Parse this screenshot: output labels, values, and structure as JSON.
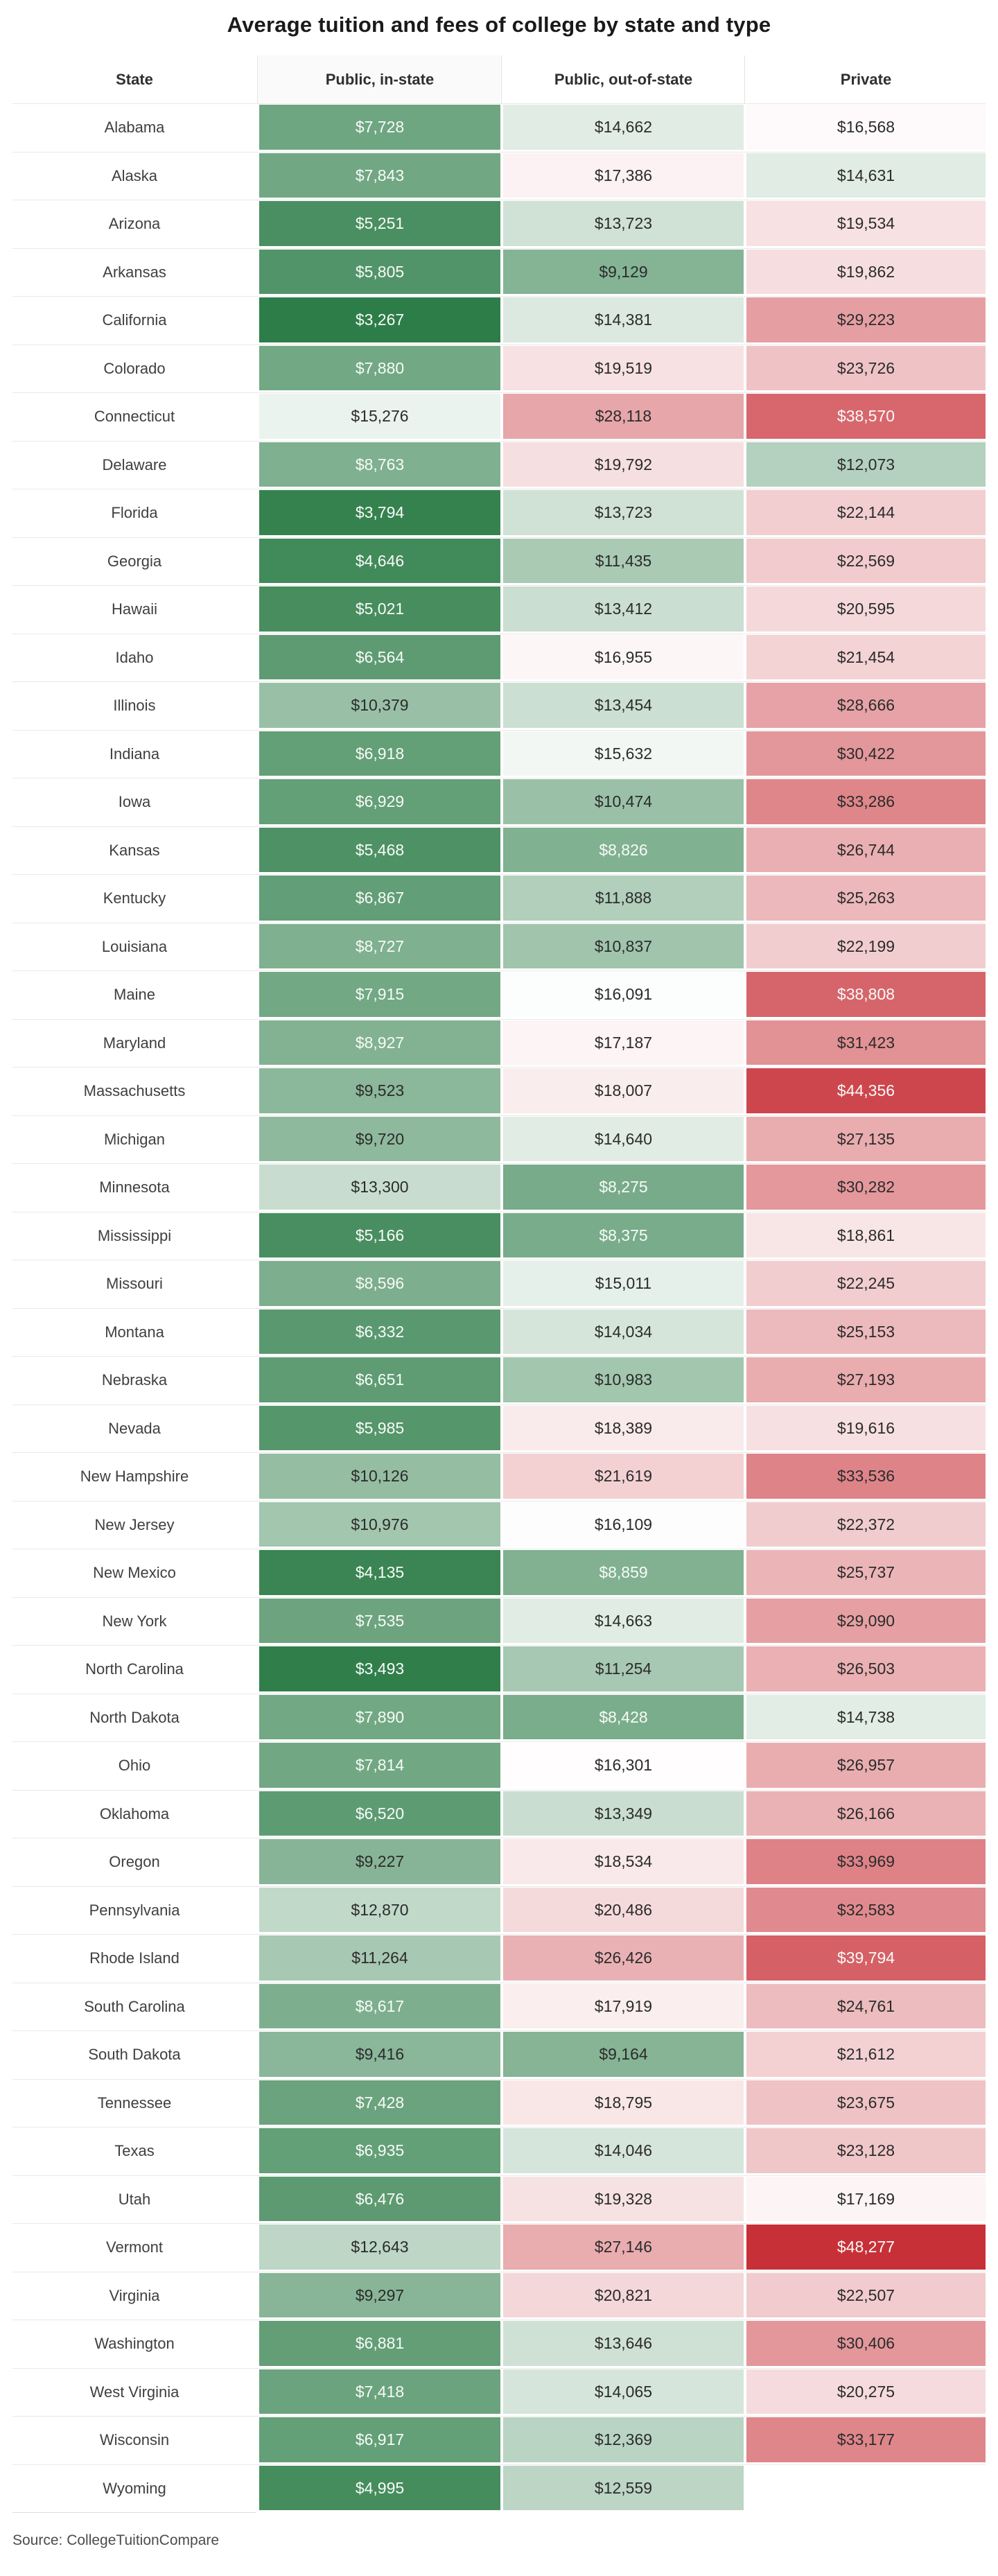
{
  "page": {
    "title": "Average tuition and fees of college by state and type",
    "source_note": "Source: CollegeTuitionCompare"
  },
  "chart_data": {
    "type": "heatmap",
    "title": "Average tuition and fees of college by state and type",
    "source": "Source: CollegeTuitionCompare",
    "columns": [
      "State",
      "Public, in-state",
      "Public, out-of-state",
      "Private"
    ],
    "value_format": "usd_thousands_comma",
    "color_scale": {
      "description": "diverging green-white-red over tuition value",
      "min_value": 3267,
      "white_point": 16200,
      "max_value": 48277,
      "green_end": "#2d7d48",
      "red_end": "#c83038",
      "white_text_below": 9000,
      "white_text_above": 36000,
      "dark_text_color": "#2b2b2b",
      "light_text_color": "#f8fbf8"
    },
    "rows": [
      {
        "state": "Alabama",
        "in_state": 7728,
        "out_state": 14662,
        "private": 16568
      },
      {
        "state": "Alaska",
        "in_state": 7843,
        "out_state": 17386,
        "private": 14631
      },
      {
        "state": "Arizona",
        "in_state": 5251,
        "out_state": 13723,
        "private": 19534
      },
      {
        "state": "Arkansas",
        "in_state": 5805,
        "out_state": 9129,
        "private": 19862
      },
      {
        "state": "California",
        "in_state": 3267,
        "out_state": 14381,
        "private": 29223
      },
      {
        "state": "Colorado",
        "in_state": 7880,
        "out_state": 19519,
        "private": 23726
      },
      {
        "state": "Connecticut",
        "in_state": 15276,
        "out_state": 28118,
        "private": 38570
      },
      {
        "state": "Delaware",
        "in_state": 8763,
        "out_state": 19792,
        "private": 12073
      },
      {
        "state": "Florida",
        "in_state": 3794,
        "out_state": 13723,
        "private": 22144
      },
      {
        "state": "Georgia",
        "in_state": 4646,
        "out_state": 11435,
        "private": 22569
      },
      {
        "state": "Hawaii",
        "in_state": 5021,
        "out_state": 13412,
        "private": 20595
      },
      {
        "state": "Idaho",
        "in_state": 6564,
        "out_state": 16955,
        "private": 21454
      },
      {
        "state": "Illinois",
        "in_state": 10379,
        "out_state": 13454,
        "private": 28666
      },
      {
        "state": "Indiana",
        "in_state": 6918,
        "out_state": 15632,
        "private": 30422
      },
      {
        "state": "Iowa",
        "in_state": 6929,
        "out_state": 10474,
        "private": 33286
      },
      {
        "state": "Kansas",
        "in_state": 5468,
        "out_state": 8826,
        "private": 26744
      },
      {
        "state": "Kentucky",
        "in_state": 6867,
        "out_state": 11888,
        "private": 25263
      },
      {
        "state": "Louisiana",
        "in_state": 8727,
        "out_state": 10837,
        "private": 22199
      },
      {
        "state": "Maine",
        "in_state": 7915,
        "out_state": 16091,
        "private": 38808
      },
      {
        "state": "Maryland",
        "in_state": 8927,
        "out_state": 17187,
        "private": 31423
      },
      {
        "state": "Massachusetts",
        "in_state": 9523,
        "out_state": 18007,
        "private": 44356
      },
      {
        "state": "Michigan",
        "in_state": 9720,
        "out_state": 14640,
        "private": 27135
      },
      {
        "state": "Minnesota",
        "in_state": 13300,
        "out_state": 8275,
        "private": 30282
      },
      {
        "state": "Mississippi",
        "in_state": 5166,
        "out_state": 8375,
        "private": 18861
      },
      {
        "state": "Missouri",
        "in_state": 8596,
        "out_state": 15011,
        "private": 22245
      },
      {
        "state": "Montana",
        "in_state": 6332,
        "out_state": 14034,
        "private": 25153
      },
      {
        "state": "Nebraska",
        "in_state": 6651,
        "out_state": 10983,
        "private": 27193
      },
      {
        "state": "Nevada",
        "in_state": 5985,
        "out_state": 18389,
        "private": 19616
      },
      {
        "state": "New Hampshire",
        "in_state": 10126,
        "out_state": 21619,
        "private": 33536
      },
      {
        "state": "New Jersey",
        "in_state": 10976,
        "out_state": 16109,
        "private": 22372
      },
      {
        "state": "New Mexico",
        "in_state": 4135,
        "out_state": 8859,
        "private": 25737
      },
      {
        "state": "New York",
        "in_state": 7535,
        "out_state": 14663,
        "private": 29090
      },
      {
        "state": "North Carolina",
        "in_state": 3493,
        "out_state": 11254,
        "private": 26503
      },
      {
        "state": "North Dakota",
        "in_state": 7890,
        "out_state": 8428,
        "private": 14738
      },
      {
        "state": "Ohio",
        "in_state": 7814,
        "out_state": 16301,
        "private": 26957
      },
      {
        "state": "Oklahoma",
        "in_state": 6520,
        "out_state": 13349,
        "private": 26166
      },
      {
        "state": "Oregon",
        "in_state": 9227,
        "out_state": 18534,
        "private": 33969
      },
      {
        "state": "Pennsylvania",
        "in_state": 12870,
        "out_state": 20486,
        "private": 32583
      },
      {
        "state": "Rhode Island",
        "in_state": 11264,
        "out_state": 26426,
        "private": 39794
      },
      {
        "state": "South Carolina",
        "in_state": 8617,
        "out_state": 17919,
        "private": 24761
      },
      {
        "state": "South Dakota",
        "in_state": 9416,
        "out_state": 9164,
        "private": 21612
      },
      {
        "state": "Tennessee",
        "in_state": 7428,
        "out_state": 18795,
        "private": 23675
      },
      {
        "state": "Texas",
        "in_state": 6935,
        "out_state": 14046,
        "private": 23128
      },
      {
        "state": "Utah",
        "in_state": 6476,
        "out_state": 19328,
        "private": 17169
      },
      {
        "state": "Vermont",
        "in_state": 12643,
        "out_state": 27146,
        "private": 48277
      },
      {
        "state": "Virginia",
        "in_state": 9297,
        "out_state": 20821,
        "private": 22507
      },
      {
        "state": "Washington",
        "in_state": 6881,
        "out_state": 13646,
        "private": 30406
      },
      {
        "state": "West Virginia",
        "in_state": 7418,
        "out_state": 14065,
        "private": 20275
      },
      {
        "state": "Wisconsin",
        "in_state": 6917,
        "out_state": 12369,
        "private": 33177
      },
      {
        "state": "Wyoming",
        "in_state": 4995,
        "out_state": 12559,
        "private": null
      }
    ]
  }
}
